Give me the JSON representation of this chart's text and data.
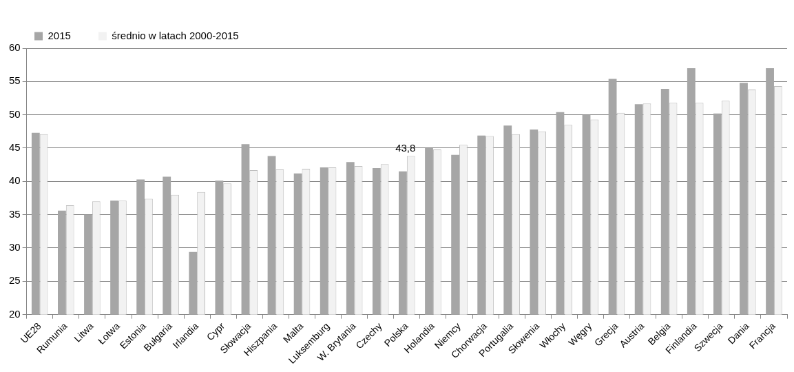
{
  "chart_data": {
    "type": "bar",
    "categories": [
      "UE28",
      "Rumunia",
      "Litwa",
      "Łotwa",
      "Estonia",
      "Bułgaria",
      "Irlandia",
      "Cypr",
      "Słowacja",
      "Hiszpania",
      "Malta",
      "Luksemburg",
      "W. Brytania",
      "Czechy",
      "Polska",
      "Holandia",
      "Niemcy",
      "Chorwacja",
      "Portugalia",
      "Słowenia",
      "Włochy",
      "Węgry",
      "Grecja",
      "Austria",
      "Belgia",
      "Finlandia",
      "Szwecja",
      "Dania",
      "Francja"
    ],
    "series": [
      {
        "name": "2015",
        "color": "#a6a6a6",
        "values": [
          47.3,
          35.6,
          35.0,
          37.1,
          40.3,
          40.7,
          29.4,
          40.1,
          45.6,
          43.8,
          41.2,
          42.1,
          42.9,
          42.0,
          41.5,
          45.0,
          44.0,
          46.9,
          48.4,
          47.8,
          50.4,
          50.0,
          55.4,
          51.6,
          53.9,
          57.0,
          50.2,
          54.8,
          57.0
        ]
      },
      {
        "name": "średnio w latach 2000-2015",
        "color": "#f2f2f2",
        "values": [
          47.1,
          36.4,
          37.0,
          37.1,
          37.4,
          38.0,
          38.4,
          39.7,
          41.7,
          41.8,
          41.9,
          42.1,
          42.3,
          42.6,
          43.8,
          44.8,
          45.5,
          46.8,
          47.1,
          47.5,
          48.5,
          49.3,
          50.3,
          51.7,
          51.8,
          51.8,
          52.1,
          53.8,
          54.3
        ],
        "value_labels": [
          null,
          null,
          null,
          null,
          null,
          null,
          null,
          null,
          null,
          null,
          null,
          null,
          null,
          null,
          "43,8",
          null,
          null,
          null,
          null,
          null,
          null,
          null,
          null,
          null,
          null,
          null,
          null,
          null,
          null
        ]
      }
    ],
    "ylim": [
      20,
      60
    ],
    "yticks": [
      20,
      25,
      30,
      35,
      40,
      45,
      50,
      55,
      60
    ],
    "grid": "y",
    "legend": "top left"
  }
}
